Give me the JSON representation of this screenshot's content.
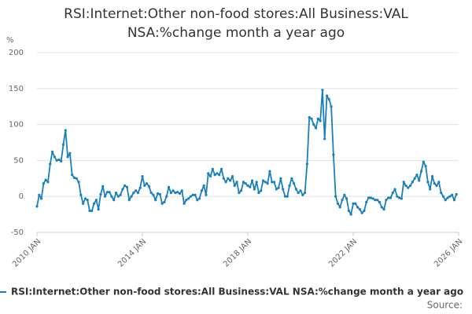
{
  "chart_data": {
    "type": "line",
    "title": "RSI:Internet:Other non-food stores:All Business:VAL NSA:%change month a year ago",
    "y_label": "%",
    "source": "Source:",
    "xlim": [
      "2010-01",
      "2026-01"
    ],
    "xticks": [
      {
        "value": "2010-01",
        "label": "2010 JAN"
      },
      {
        "value": "2014-01",
        "label": "2014 JAN"
      },
      {
        "value": "2018-01",
        "label": "2018 JAN"
      },
      {
        "value": "2022-01",
        "label": "2022 JAN"
      },
      {
        "value": "2026-01",
        "label": "2026 JAN"
      }
    ],
    "ylim": [
      -50,
      200
    ],
    "yticks": [
      -50,
      0,
      50,
      100,
      150,
      200
    ],
    "grid": true,
    "series": [
      {
        "name": "RSI:Internet:Other non-food stores:All Business:VAL NSA:%change month a year ago",
        "color": "#1a80bb",
        "values": [
          -14,
          2,
          -3,
          18,
          23,
          20,
          45,
          62,
          55,
          50,
          51,
          49,
          72,
          92,
          55,
          60,
          30,
          26,
          25,
          20,
          2,
          -10,
          -3,
          -5,
          -20,
          -20,
          -10,
          -5,
          -18,
          3,
          14,
          0,
          6,
          6,
          0,
          -5,
          5,
          0,
          2,
          10,
          15,
          13,
          -5,
          0,
          5,
          8,
          5,
          12,
          28,
          15,
          18,
          14,
          5,
          2,
          -5,
          4,
          3,
          -10,
          -8,
          0,
          13,
          5,
          8,
          5,
          6,
          4,
          8,
          -10,
          -5,
          -3,
          0,
          2,
          2,
          -5,
          -3,
          8,
          15,
          2,
          32,
          28,
          38,
          30,
          32,
          30,
          38,
          25,
          20,
          25,
          22,
          28,
          15,
          20,
          5,
          8,
          20,
          18,
          15,
          13,
          22,
          10,
          20,
          5,
          8,
          22,
          20,
          18,
          35,
          20,
          20,
          10,
          12,
          25,
          10,
          0,
          0,
          15,
          25,
          18,
          10,
          5,
          8,
          2,
          5,
          45,
          110,
          108,
          100,
          95,
          108,
          105,
          148,
          80,
          140,
          135,
          125,
          58,
          0,
          -10,
          -15,
          -5,
          2,
          -3,
          -20,
          -25,
          -10,
          -10,
          -15,
          -18,
          -23,
          -20,
          -8,
          -2,
          -2,
          -3,
          -5,
          -5,
          -8,
          -15,
          -18,
          -5,
          -2,
          -2,
          5,
          10,
          0,
          -2,
          -3,
          20,
          15,
          12,
          15,
          20,
          25,
          30,
          22,
          35,
          48,
          42,
          20,
          10,
          28,
          18,
          15,
          20,
          5,
          0,
          -5,
          -2,
          0,
          2,
          -5,
          3
        ]
      }
    ],
    "x": [
      "2010-01",
      "2010-02",
      "2010-03",
      "2010-04",
      "2010-05",
      "2010-06",
      "2010-07",
      "2010-08",
      "2010-09",
      "2010-10",
      "2010-11",
      "2010-12",
      "2011-01",
      "2011-02",
      "2011-03",
      "2011-04",
      "2011-05",
      "2011-06",
      "2011-07",
      "2011-08",
      "2011-09",
      "2011-10",
      "2011-11",
      "2011-12",
      "2012-01",
      "2012-02",
      "2012-03",
      "2012-04",
      "2012-05",
      "2012-06",
      "2012-07",
      "2012-08",
      "2012-09",
      "2012-10",
      "2012-11",
      "2012-12",
      "2013-01",
      "2013-02",
      "2013-03",
      "2013-04",
      "2013-05",
      "2013-06",
      "2013-07",
      "2013-08",
      "2013-09",
      "2013-10",
      "2013-11",
      "2013-12",
      "2014-01",
      "2014-02",
      "2014-03",
      "2014-04",
      "2014-05",
      "2014-06",
      "2014-07",
      "2014-08",
      "2014-09",
      "2014-10",
      "2014-11",
      "2014-12",
      "2015-01",
      "2015-02",
      "2015-03",
      "2015-04",
      "2015-05",
      "2015-06",
      "2015-07",
      "2015-08",
      "2015-09",
      "2015-10",
      "2015-11",
      "2015-12",
      "2016-01",
      "2016-02",
      "2016-03",
      "2016-04",
      "2016-05",
      "2016-06",
      "2016-07",
      "2016-08",
      "2016-09",
      "2016-10",
      "2016-11",
      "2016-12",
      "2017-01",
      "2017-02",
      "2017-03",
      "2017-04",
      "2017-05",
      "2017-06",
      "2017-07",
      "2017-08",
      "2017-09",
      "2017-10",
      "2017-11",
      "2017-12",
      "2018-01",
      "2018-02",
      "2018-03",
      "2018-04",
      "2018-05",
      "2018-06",
      "2018-07",
      "2018-08",
      "2018-09",
      "2018-10",
      "2018-11",
      "2018-12",
      "2019-01",
      "2019-02",
      "2019-03",
      "2019-04",
      "2019-05",
      "2019-06",
      "2019-07",
      "2019-08",
      "2019-09",
      "2019-10",
      "2019-11",
      "2019-12",
      "2020-01",
      "2020-02",
      "2020-03",
      "2020-04",
      "2020-05",
      "2020-06",
      "2020-07",
      "2020-08",
      "2020-09",
      "2020-10",
      "2020-11",
      "2020-12",
      "2021-01",
      "2021-02",
      "2021-03",
      "2021-04",
      "2021-05",
      "2021-06",
      "2021-07",
      "2021-08",
      "2021-09",
      "2021-10",
      "2021-11",
      "2021-12",
      "2022-01",
      "2022-02",
      "2022-03",
      "2022-04",
      "2022-05",
      "2022-06",
      "2022-07",
      "2022-08",
      "2022-09",
      "2022-10",
      "2022-11",
      "2022-12",
      "2023-01",
      "2023-02",
      "2023-03",
      "2023-04",
      "2023-05",
      "2023-06",
      "2023-07",
      "2023-08",
      "2023-09",
      "2023-10",
      "2023-11",
      "2023-12",
      "2024-01",
      "2024-02",
      "2024-03",
      "2024-04",
      "2024-05",
      "2024-06",
      "2024-07",
      "2024-08",
      "2024-09",
      "2024-10",
      "2024-11",
      "2024-12",
      "2025-01",
      "2025-02",
      "2025-03",
      "2025-04",
      "2025-05",
      "2025-06",
      "2025-07",
      "2025-08",
      "2025-09",
      "2025-10",
      "2025-11",
      "2025-12"
    ]
  }
}
